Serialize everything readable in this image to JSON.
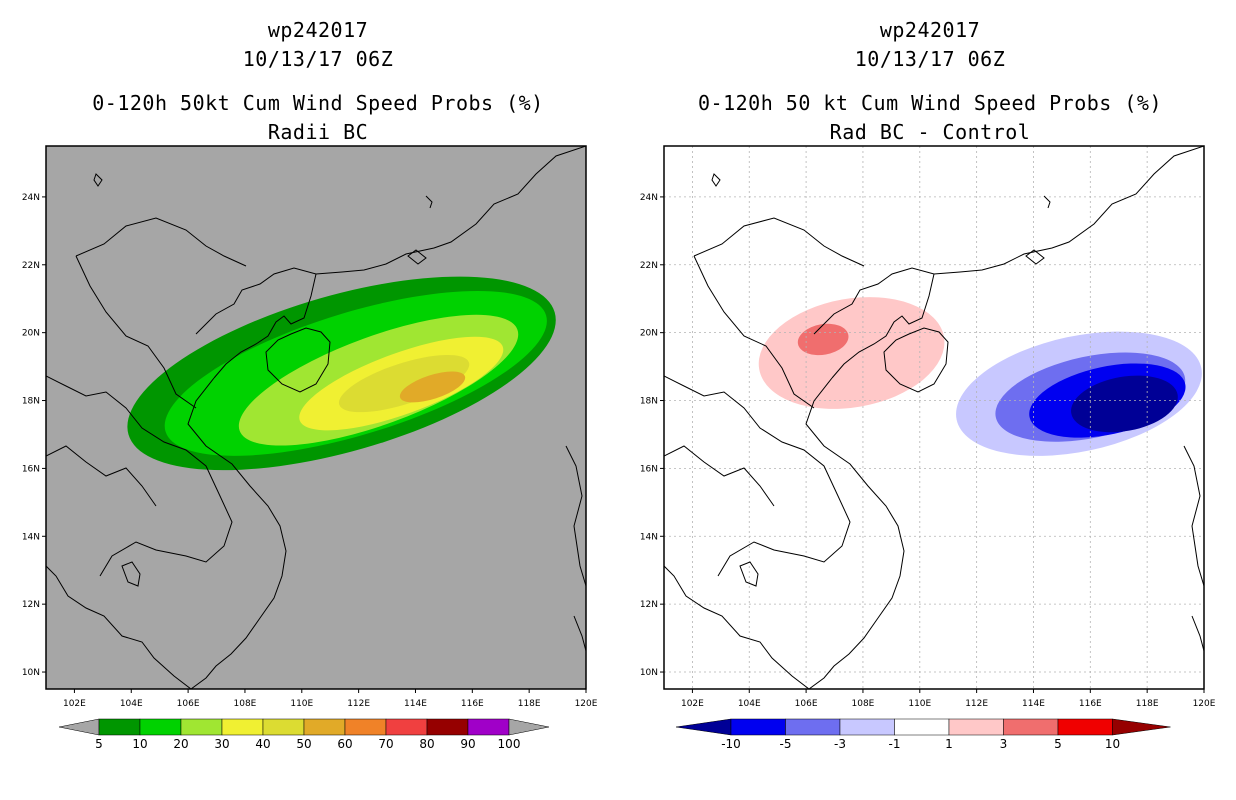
{
  "chart_data": [
    {
      "type": "heatmap",
      "storm_id": "wp242017",
      "datetime": "10/13/17 06Z",
      "title": "0-120h 50kt Cum Wind Speed Probs (%)",
      "subtitle": "Radii BC",
      "x_ticks": [
        "102E",
        "104E",
        "106E",
        "108E",
        "110E",
        "112E",
        "114E",
        "116E",
        "118E",
        "120E"
      ],
      "y_ticks": [
        "24N",
        "22N",
        "20N",
        "18N",
        "16N",
        "14N",
        "12N",
        "10N"
      ],
      "xlim": [
        101,
        120
      ],
      "ylim": [
        9.5,
        25.5
      ],
      "background_color": "#a6a6a6",
      "colorbar": {
        "labels": [
          "5",
          "10",
          "20",
          "30",
          "40",
          "50",
          "60",
          "70",
          "80",
          "90",
          "100"
        ],
        "colors": [
          "#009600",
          "#00d200",
          "#a0e632",
          "#f0f032",
          "#dcdc32",
          "#e1aa28",
          "#f08228",
          "#f04040",
          "#960000",
          "#a000c8"
        ],
        "end_color": "#a6a6a6"
      },
      "contour_levels": [
        {
          "level": 5,
          "color": "#009600",
          "ellipse": {
            "cx": 111.4,
            "cy": 18.8,
            "rx": 7.8,
            "ry": 2.3,
            "angle": -16
          }
        },
        {
          "level": 10,
          "color": "#00d200",
          "ellipse": {
            "cx": 111.9,
            "cy": 18.8,
            "rx": 7.0,
            "ry": 1.8,
            "angle": -17
          }
        },
        {
          "level": 20,
          "color": "#a0e632",
          "ellipse": {
            "cx": 112.7,
            "cy": 18.6,
            "rx": 5.2,
            "ry": 1.3,
            "angle": -20
          }
        },
        {
          "level": 30,
          "color": "#f0f032",
          "ellipse": {
            "cx": 113.5,
            "cy": 18.5,
            "rx": 3.8,
            "ry": 0.9,
            "angle": -20
          }
        },
        {
          "level": 40,
          "color": "#dcdc32",
          "ellipse": {
            "cx": 113.6,
            "cy": 18.5,
            "rx": 2.4,
            "ry": 0.6,
            "angle": -18
          }
        },
        {
          "level": 50,
          "color": "#e1aa28",
          "ellipse": {
            "cx": 114.6,
            "cy": 18.4,
            "rx": 1.2,
            "ry": 0.35,
            "angle": -18
          }
        }
      ]
    },
    {
      "type": "heatmap",
      "storm_id": "wp242017",
      "datetime": "10/13/17 06Z",
      "title": "0-120h 50 kt Cum Wind Speed Probs (%)",
      "subtitle": "Rad BC - Control",
      "x_ticks": [
        "102E",
        "104E",
        "106E",
        "108E",
        "110E",
        "112E",
        "114E",
        "116E",
        "118E",
        "120E"
      ],
      "y_ticks": [
        "24N",
        "22N",
        "20N",
        "18N",
        "16N",
        "14N",
        "12N",
        "10N"
      ],
      "xlim": [
        101,
        120
      ],
      "ylim": [
        9.5,
        25.5
      ],
      "background_color": "#ffffff",
      "colorbar": {
        "labels": [
          "-10",
          "-5",
          "-3",
          "-1",
          "1",
          "3",
          "5",
          "10"
        ],
        "colors": [
          "#000096",
          "#0000f0",
          "#6e6ef0",
          "#c8c8ff",
          "#ffffff",
          "#ffc8c8",
          "#f06e6e",
          "#f00000",
          "#960000"
        ],
        "end_low_color": "#000096",
        "end_high_color": "#960000"
      },
      "contour_levels": [
        {
          "level": 1,
          "color": "#ffc8c8",
          "ellipse": {
            "cx": 107.6,
            "cy": 19.4,
            "rx": 3.3,
            "ry": 1.6,
            "angle": -10
          }
        },
        {
          "level": 3,
          "color": "#f06e6e",
          "ellipse": {
            "cx": 106.6,
            "cy": 19.8,
            "rx": 0.9,
            "ry": 0.45,
            "angle": -10
          }
        },
        {
          "level": -1,
          "color": "#c8c8ff",
          "ellipse": {
            "cx": 115.6,
            "cy": 18.2,
            "rx": 4.4,
            "ry": 1.7,
            "angle": -12
          }
        },
        {
          "level": -3,
          "color": "#6e6ef0",
          "ellipse": {
            "cx": 116.0,
            "cy": 18.1,
            "rx": 3.4,
            "ry": 1.2,
            "angle": -12
          }
        },
        {
          "level": -5,
          "color": "#0000f0",
          "ellipse": {
            "cx": 116.6,
            "cy": 18.0,
            "rx": 2.8,
            "ry": 1.0,
            "angle": -12
          }
        },
        {
          "level": -10,
          "color": "#000096",
          "ellipse": {
            "cx": 117.2,
            "cy": 17.9,
            "rx": 1.9,
            "ry": 0.8,
            "angle": -10
          }
        }
      ]
    }
  ]
}
